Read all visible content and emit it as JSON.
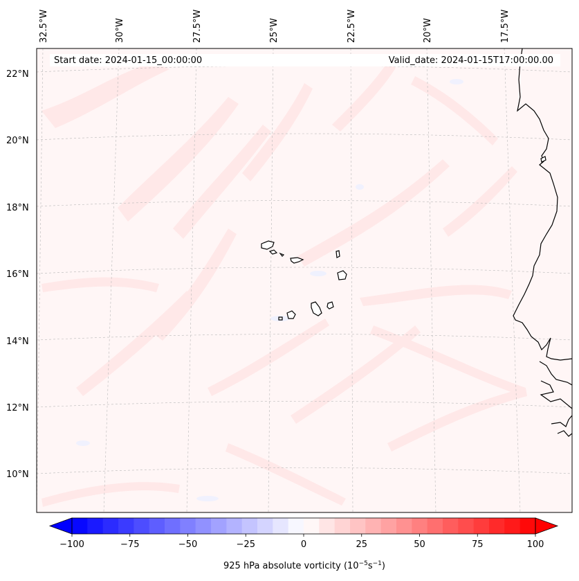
{
  "map": {
    "start_date": "Start date: 2024-01-15_00:00:00",
    "valid_date": "Valid_date: 2024-01-15T17:00:00.00",
    "longitude_labels": [
      "32.5°W",
      "30°W",
      "27.5°W",
      "25°W",
      "22.5°W",
      "20°W",
      "17.5°W"
    ],
    "latitude_labels": [
      "22°N",
      "20°N",
      "18°N",
      "16°N",
      "14°N",
      "12°N",
      "10°N"
    ],
    "field": "925 hPa absolute vorticity"
  },
  "colorbar": {
    "label_main": "925 hPa absolute vorticity (10",
    "label_exp1": "−5",
    "label_mid": "s",
    "label_exp2": "−1",
    "label_end": ")",
    "ticks": [
      "−100",
      "−75",
      "−50",
      "−25",
      "0",
      "25",
      "50",
      "75",
      "100"
    ],
    "min": -100,
    "max": 100,
    "levels": 30,
    "colors": {
      "negative": "#0000ff",
      "neutral": "#ffffff",
      "positive": "#ff0000"
    }
  }
}
